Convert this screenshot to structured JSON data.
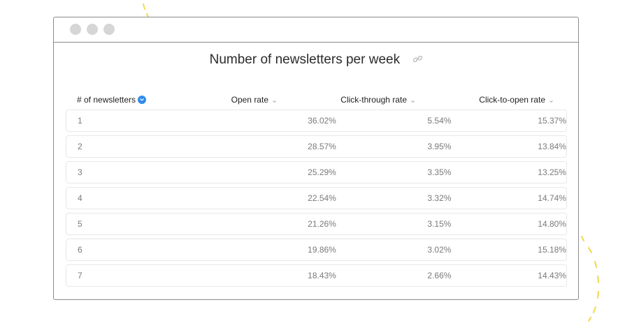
{
  "page_title": "Number of newsletters per week",
  "icons": {
    "link": "link-icon",
    "sort_active": "chevron-down-icon",
    "sort_inactive": "caret-down-icon"
  },
  "colors": {
    "accent": "#2f8bea",
    "decoration": "#f5d64a",
    "border": "#8a8a8a",
    "window_dots": "#d6d6d6"
  },
  "table": {
    "columns": [
      {
        "label": "# of newsletters",
        "sorted": true
      },
      {
        "label": "Open rate",
        "sorted": false
      },
      {
        "label": "Click-through rate",
        "sorted": false
      },
      {
        "label": "Click-to-open rate",
        "sorted": false
      }
    ],
    "rows": [
      {
        "count": "1",
        "open_rate": "36.02%",
        "ctr": "5.54%",
        "ctor": "15.37%"
      },
      {
        "count": "2",
        "open_rate": "28.57%",
        "ctr": "3.95%",
        "ctor": "13.84%"
      },
      {
        "count": "3",
        "open_rate": "25.29%",
        "ctr": "3.35%",
        "ctor": "13.25%"
      },
      {
        "count": "4",
        "open_rate": "22.54%",
        "ctr": "3.32%",
        "ctor": "14.74%"
      },
      {
        "count": "5",
        "open_rate": "21.26%",
        "ctr": "3.15%",
        "ctor": "14.80%"
      },
      {
        "count": "6",
        "open_rate": "19.86%",
        "ctr": "3.02%",
        "ctor": "15.18%"
      },
      {
        "count": "7",
        "open_rate": "18.43%",
        "ctr": "2.66%",
        "ctor": "14.43%"
      }
    ]
  }
}
